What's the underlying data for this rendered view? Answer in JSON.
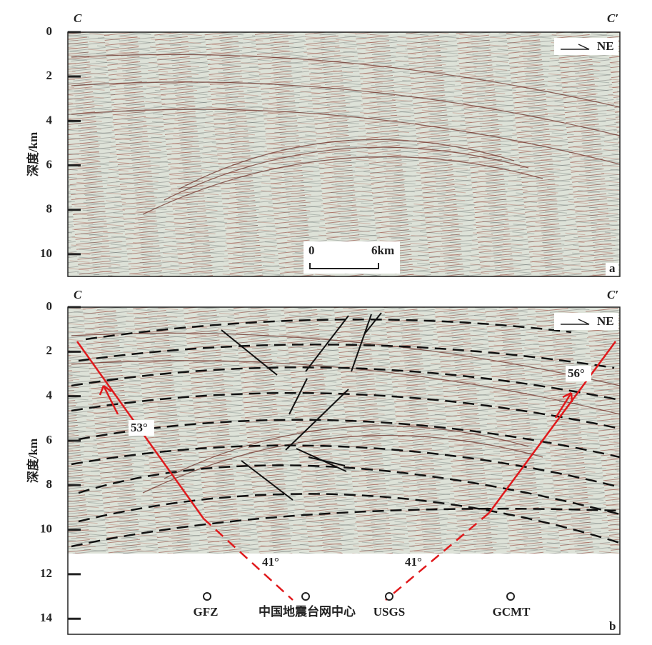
{
  "panels": [
    {
      "label": "a",
      "start": "C",
      "end": "C′",
      "direction": "NE",
      "y_axis_label": "深度/km",
      "ylim": [
        0,
        11
      ],
      "yticks": [
        0,
        2,
        4,
        6,
        8,
        10
      ],
      "scale_bar": [
        "0",
        "6km"
      ]
    },
    {
      "label": "b",
      "start": "C",
      "end": "C′",
      "direction": "NE",
      "y_axis_label": "深度/km",
      "ylim": [
        0,
        14.7
      ],
      "yticks": [
        0,
        2,
        4,
        6,
        8,
        10,
        12,
        14
      ],
      "dip_angles": [
        "53°",
        "56°",
        "41°",
        "41°"
      ],
      "stations": [
        "GFZ",
        "中国地震台网中心",
        "USGS",
        "GCMT"
      ]
    }
  ]
}
